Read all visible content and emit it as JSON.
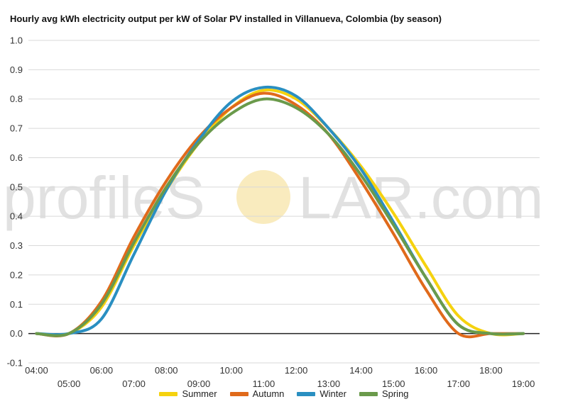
{
  "title": "Hourly avg kWh electricity output per kW of Solar PV installed in Villanueva, Colombia (by season)",
  "watermark": {
    "left": "profileS",
    "right": "LAR.com"
  },
  "colors": {
    "summer": "#f5d20f",
    "autumn": "#e06a1b",
    "winter": "#2a8fc1",
    "spring": "#6a9a4b",
    "grid": "#d9d9d9",
    "zero_line": "#222222",
    "sun": "#f6e3a3"
  },
  "chart_data": {
    "type": "line",
    "title": "Hourly avg kWh electricity output per kW of Solar PV installed in Villanueva, Colombia (by season)",
    "xlabel": "",
    "ylabel": "",
    "ylim": [
      -0.1,
      1.0
    ],
    "xlim": [
      3.75,
      19.5
    ],
    "yticks": [
      "-0.1",
      "0.0",
      "0.1",
      "0.2",
      "0.3",
      "0.4",
      "0.5",
      "0.6",
      "0.7",
      "0.8",
      "0.9",
      "1.0"
    ],
    "xticks_upper": [
      "04:00",
      "06:00",
      "08:00",
      "10:00",
      "12:00",
      "14:00",
      "16:00",
      "18:00"
    ],
    "xticks_lower": [
      "05:00",
      "07:00",
      "09:00",
      "11:00",
      "13:00",
      "15:00",
      "17:00",
      "19:00"
    ],
    "grid": true,
    "legend_position": "bottom",
    "x": [
      4,
      5,
      6,
      7,
      8,
      9,
      10,
      11,
      12,
      13,
      14,
      15,
      16,
      17,
      18,
      19
    ],
    "series": [
      {
        "name": "Summer",
        "color_key": "summer",
        "values": [
          0.0,
          0.0,
          0.09,
          0.3,
          0.49,
          0.65,
          0.77,
          0.83,
          0.8,
          0.7,
          0.57,
          0.41,
          0.23,
          0.06,
          0.0,
          0.0
        ]
      },
      {
        "name": "Autumn",
        "color_key": "autumn",
        "values": [
          0.0,
          0.0,
          0.11,
          0.33,
          0.52,
          0.67,
          0.77,
          0.82,
          0.78,
          0.68,
          0.52,
          0.34,
          0.15,
          0.0,
          0.0,
          0.0
        ]
      },
      {
        "name": "Winter",
        "color_key": "winter",
        "values": [
          0.0,
          0.0,
          0.05,
          0.27,
          0.49,
          0.66,
          0.79,
          0.84,
          0.81,
          0.7,
          0.56,
          0.38,
          0.19,
          0.03,
          0.0,
          0.0
        ]
      },
      {
        "name": "Spring",
        "color_key": "spring",
        "values": [
          0.0,
          0.0,
          0.1,
          0.31,
          0.5,
          0.65,
          0.75,
          0.8,
          0.77,
          0.68,
          0.54,
          0.37,
          0.19,
          0.03,
          0.0,
          0.0
        ]
      }
    ]
  }
}
